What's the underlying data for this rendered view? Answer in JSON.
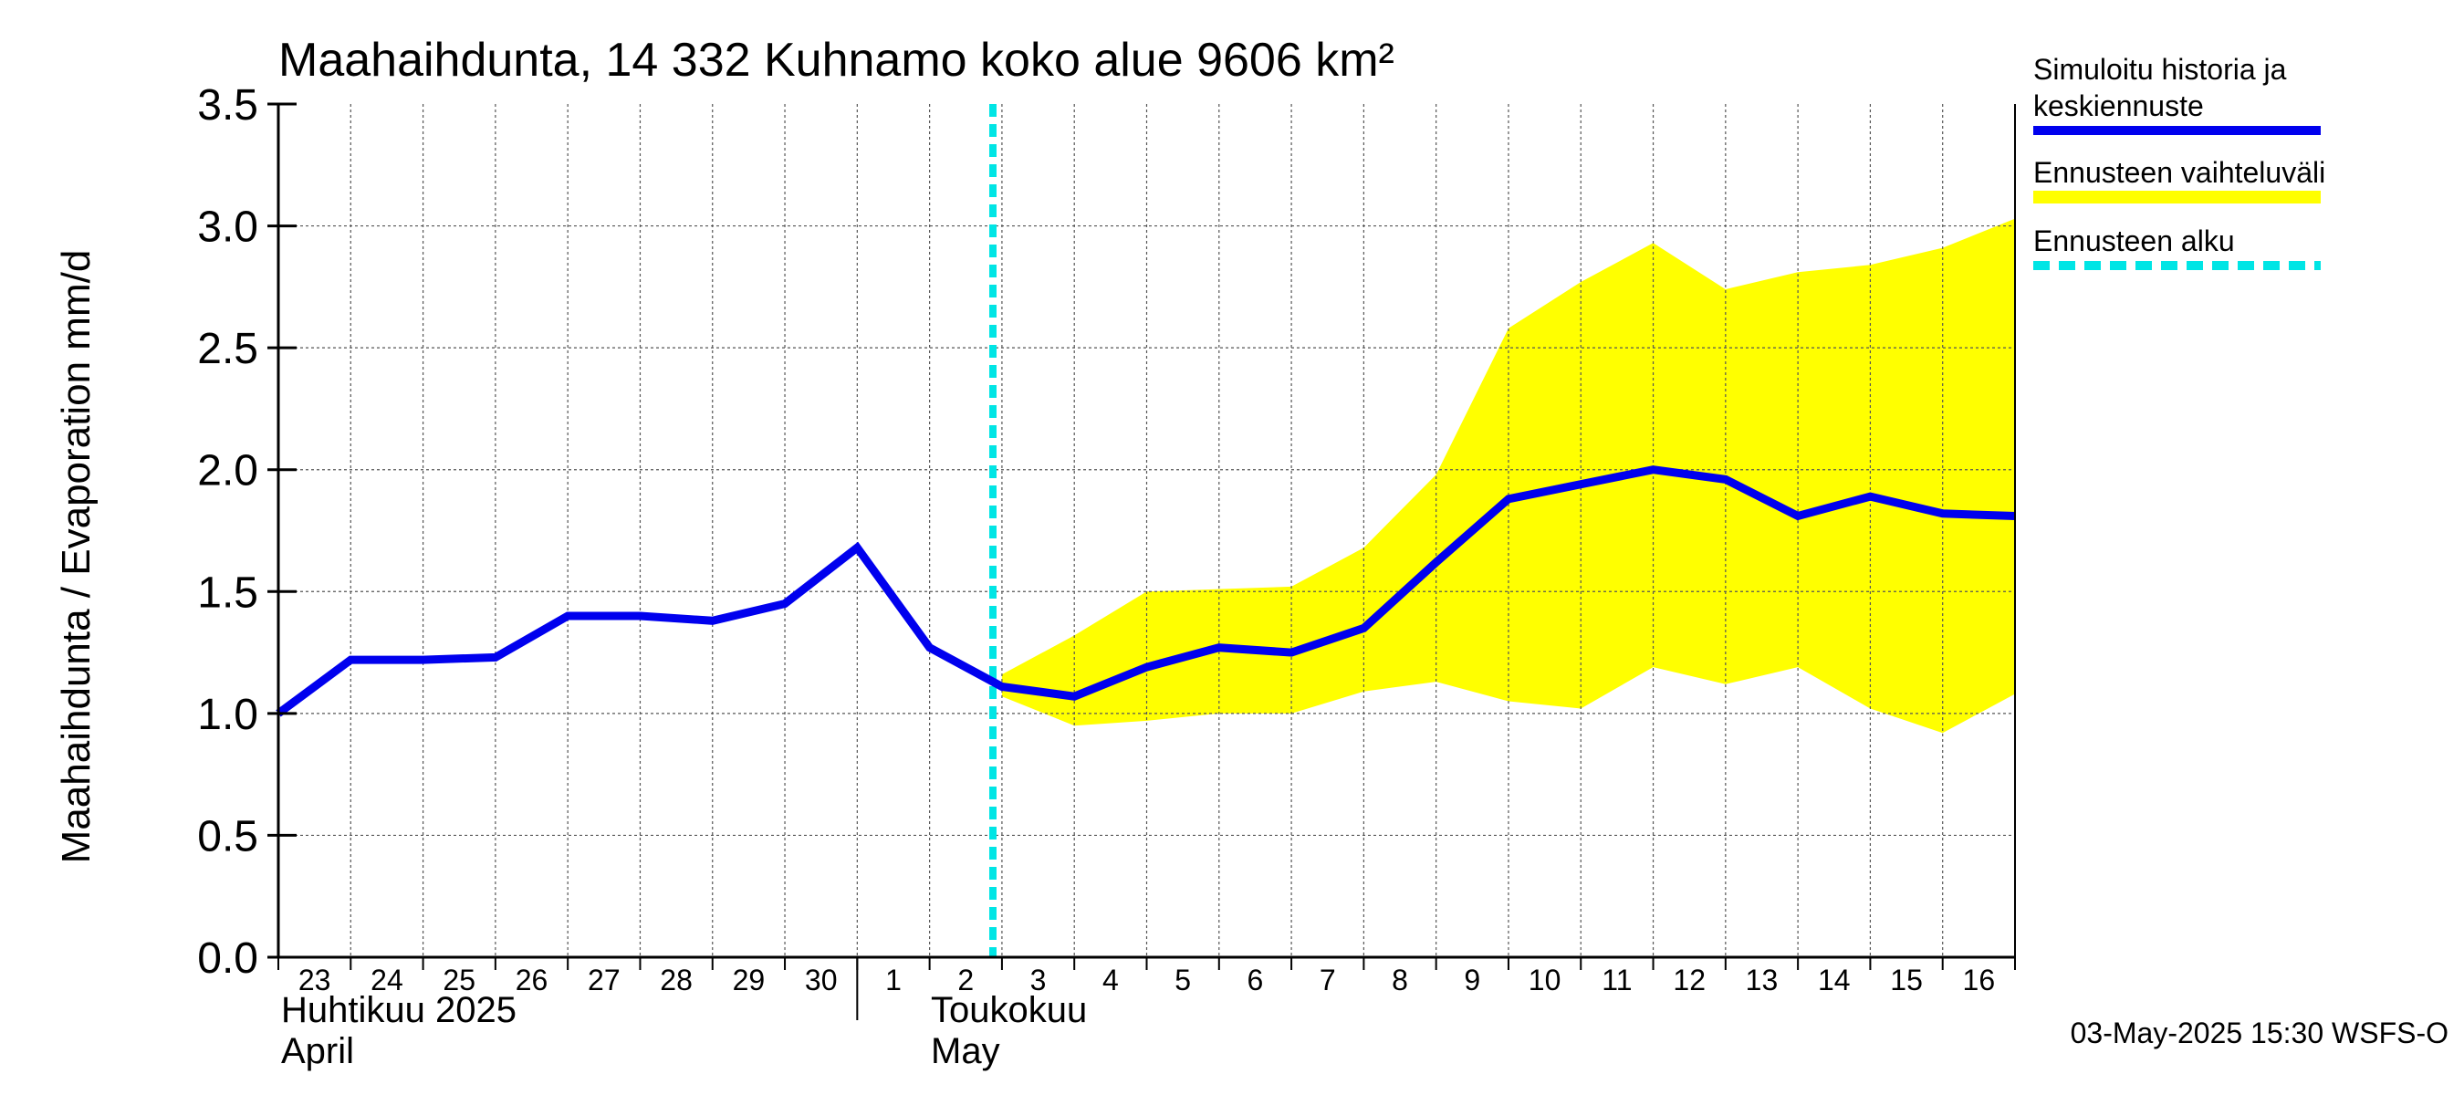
{
  "chart_data": {
    "type": "line",
    "title": "Maahaihdunta, 14 332 Kuhnamo koko alue 9606 km²",
    "ylabel": "Maahaihdunta / Evaporation   mm/d",
    "ylim": [
      0.0,
      3.5
    ],
    "yticks": [
      "0.0",
      "0.5",
      "1.0",
      "1.5",
      "2.0",
      "2.5",
      "3.0",
      "3.5"
    ],
    "xlim": [
      "2025-04-23",
      "2025-05-17"
    ],
    "day_ticks": [
      "23",
      "24",
      "25",
      "26",
      "27",
      "28",
      "29",
      "30",
      "1",
      "2",
      "3",
      "4",
      "5",
      "6",
      "7",
      "8",
      "9",
      "10",
      "11",
      "12",
      "13",
      "14",
      "15",
      "16"
    ],
    "month_labels": [
      {
        "line1": "Huhtikuu  2025",
        "line2": "April"
      },
      {
        "line1": "Toukokuu",
        "line2": "May"
      }
    ],
    "grid": true,
    "legend_position": "right",
    "series": [
      {
        "name": "Simuloitu historia ja keskiennuste",
        "color": "#0000ee",
        "x": [
          "2025-04-23",
          "2025-04-24",
          "2025-04-25",
          "2025-04-26",
          "2025-04-27",
          "2025-04-28",
          "2025-04-29",
          "2025-04-30",
          "2025-05-01",
          "2025-05-02",
          "2025-05-03",
          "2025-05-04",
          "2025-05-05",
          "2025-05-06",
          "2025-05-07",
          "2025-05-08",
          "2025-05-09",
          "2025-05-10",
          "2025-05-11",
          "2025-05-12",
          "2025-05-13",
          "2025-05-14",
          "2025-05-15",
          "2025-05-16",
          "2025-05-17"
        ],
        "values": [
          1.0,
          1.22,
          1.22,
          1.23,
          1.4,
          1.4,
          1.38,
          1.45,
          1.68,
          1.27,
          1.11,
          1.07,
          1.19,
          1.27,
          1.25,
          1.35,
          1.62,
          1.88,
          1.94,
          2.0,
          1.96,
          1.81,
          1.89,
          1.82,
          1.81
        ]
      },
      {
        "name": "Ennusteen vaihteluväli",
        "color": "#ffff00",
        "x": [
          "2025-05-03",
          "2025-05-04",
          "2025-05-05",
          "2025-05-06",
          "2025-05-07",
          "2025-05-08",
          "2025-05-09",
          "2025-05-10",
          "2025-05-11",
          "2025-05-12",
          "2025-05-13",
          "2025-05-14",
          "2025-05-15",
          "2025-05-16",
          "2025-05-17"
        ],
        "upper": [
          1.16,
          1.32,
          1.5,
          1.51,
          1.52,
          1.68,
          1.98,
          2.58,
          2.77,
          2.93,
          2.74,
          2.81,
          2.84,
          2.91,
          3.03
        ],
        "lower": [
          1.07,
          0.95,
          0.97,
          1.0,
          1.0,
          1.09,
          1.13,
          1.05,
          1.02,
          1.19,
          1.12,
          1.19,
          1.02,
          0.92,
          1.08
        ]
      },
      {
        "name": "Ennusteen alku",
        "color": "#00e5e5",
        "x": "2025-05-02T21:00"
      }
    ],
    "legend": [
      {
        "line1": "Simuloitu historia ja",
        "line2": "keskiennuste",
        "color": "#0000ee",
        "style": "solid"
      },
      {
        "line1": "Ennusteen vaihteluväli",
        "line2": "",
        "color": "#ffff00",
        "style": "solid"
      },
      {
        "line1": "Ennusteen alku",
        "line2": "",
        "color": "#00e5e5",
        "style": "dashed"
      }
    ],
    "footer": "03-May-2025 15:30 WSFS-O"
  }
}
